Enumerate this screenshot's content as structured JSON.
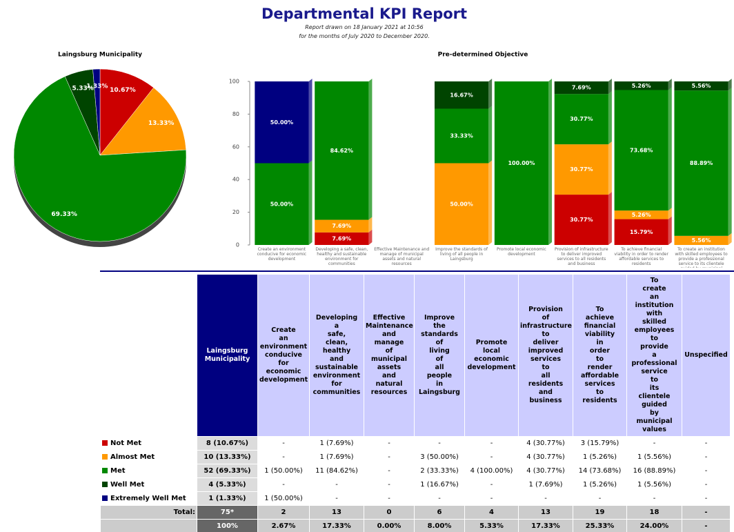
{
  "header": {
    "title": "Departmental KPI Report",
    "subtitle_1": "Report drawn on 18 January 2021 at 10:56",
    "subtitle_2": "for the months of July 2020 to December 2020."
  },
  "chart_data": [
    {
      "type": "pie",
      "title": "Laingsburg Municipality",
      "values": [
        10.67,
        13.33,
        69.33,
        5.33,
        1.33
      ],
      "value_labels": [
        "10.67%",
        "13.33%",
        "69.33%",
        "5.33%",
        "1.33%"
      ],
      "colors": [
        "#cc0000",
        "#ff9900",
        "#008800",
        "#004400",
        "#000080"
      ]
    },
    {
      "type": "bar",
      "stacked": true,
      "title": "Pre-determined Objective",
      "categories": [
        "Create an environment conducive for economic development",
        "Developing a safe, clean, healthy and sustainable environment for communities",
        "Effective Maintenance and manage of municipal assets and natural resources",
        "Improve the standards of living of all people in Laingsburg",
        "Promote local economic development",
        "Provision of infrastructure to deliver improved services to all residents and business",
        "To achieve financial viability in order to render affordable services to residents",
        "To create an institution with skilled employees to provide a professional service to its clientele guided by municipal values"
      ],
      "series": [
        {
          "name": "Not Met",
          "color": "#cc0000",
          "values": [
            0,
            7.69,
            0,
            0,
            0,
            30.77,
            15.79,
            0
          ],
          "value_labels": [
            null,
            "7.69%",
            null,
            null,
            null,
            "30.77%",
            "15.79%",
            null
          ]
        },
        {
          "name": "Almost Met",
          "color": "#ff9900",
          "values": [
            0,
            7.69,
            0,
            50,
            0,
            30.77,
            5.26,
            5.56
          ],
          "value_labels": [
            null,
            "7.69%",
            null,
            "50.00%",
            null,
            "30.77%",
            "5.26%",
            "5.56%"
          ]
        },
        {
          "name": "Met",
          "color": "#008800",
          "values": [
            50,
            84.62,
            0,
            33.33,
            100,
            30.77,
            73.68,
            88.89
          ],
          "value_labels": [
            "50.00%",
            "84.62%",
            null,
            "33.33%",
            "100.00%",
            "30.77%",
            "73.68%",
            "88.89%"
          ]
        },
        {
          "name": "Well Met",
          "color": "#004400",
          "values": [
            0,
            0,
            0,
            16.67,
            0,
            7.69,
            5.26,
            5.56
          ],
          "value_labels": [
            null,
            null,
            null,
            "16.67%",
            null,
            "7.69%",
            "5.26%",
            "5.56%"
          ]
        },
        {
          "name": "Extremely Well Met",
          "color": "#000080",
          "values": [
            50,
            0,
            0,
            0,
            0,
            0,
            0,
            0
          ],
          "value_labels": [
            "50.00%",
            null,
            null,
            null,
            null,
            null,
            null,
            null
          ]
        }
      ],
      "ylim": [
        0,
        100
      ],
      "yticks": [
        0,
        20,
        40,
        60,
        80,
        100
      ]
    }
  ],
  "table": {
    "unspecified_header": "Unspecified",
    "rows": [
      [
        "8 (10.67%)",
        "-",
        "1 (7.69%)",
        "-",
        "-",
        "-",
        "4 (30.77%)",
        "3 (15.79%)",
        "-",
        "-"
      ],
      [
        "10 (13.33%)",
        "-",
        "1 (7.69%)",
        "-",
        "3 (50.00%)",
        "-",
        "4 (30.77%)",
        "1 (5.26%)",
        "1 (5.56%)",
        "-"
      ],
      [
        "52 (69.33%)",
        "1 (50.00%)",
        "11 (84.62%)",
        "-",
        "2 (33.33%)",
        "4 (100.00%)",
        "4 (30.77%)",
        "14 (73.68%)",
        "16 (88.89%)",
        "-"
      ],
      [
        "4 (5.33%)",
        "-",
        "-",
        "-",
        "1 (16.67%)",
        "-",
        "1 (7.69%)",
        "1 (5.26%)",
        "1 (5.56%)",
        "-"
      ],
      [
        "1 (1.33%)",
        "1 (50.00%)",
        "-",
        "-",
        "-",
        "-",
        "-",
        "-",
        "-",
        "-"
      ]
    ],
    "total_label": "Total:",
    "totals": [
      "75*",
      "2",
      "13",
      "0",
      "6",
      "4",
      "13",
      "19",
      "18",
      "-"
    ],
    "percentages": [
      "100%",
      "2.67%",
      "17.33%",
      "0.00%",
      "8.00%",
      "5.33%",
      "17.33%",
      "25.33%",
      "24.00%",
      "-"
    ]
  }
}
